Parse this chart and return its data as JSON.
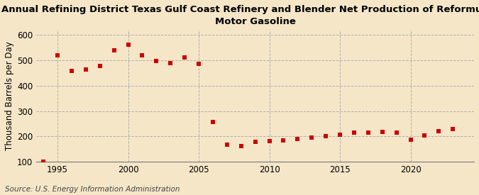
{
  "title": "Annual Refining District Texas Gulf Coast Refinery and Blender Net Production of Reformulated\nMotor Gasoline",
  "ylabel": "Thousand Barrels per Day",
  "source": "Source: U.S. Energy Information Administration",
  "background_color": "#f5e6c8",
  "years": [
    1994,
    1995,
    1996,
    1997,
    1998,
    1999,
    2000,
    2001,
    2002,
    2003,
    2004,
    2005,
    2006,
    2007,
    2008,
    2009,
    2010,
    2011,
    2012,
    2013,
    2014,
    2015,
    2016,
    2017,
    2018,
    2019,
    2020,
    2021,
    2022,
    2023
  ],
  "values": [
    100,
    520,
    458,
    463,
    477,
    540,
    562,
    520,
    497,
    490,
    512,
    487,
    257,
    168,
    163,
    178,
    183,
    185,
    190,
    197,
    200,
    208,
    215,
    215,
    218,
    215,
    188,
    205,
    222,
    230
  ],
  "marker_color": "#cc0000",
  "marker_size": 5,
  "ylim": [
    100,
    620
  ],
  "yticks": [
    100,
    200,
    300,
    400,
    500,
    600
  ],
  "xlim": [
    1993.5,
    2024.5
  ],
  "xticks": [
    1995,
    2000,
    2005,
    2010,
    2015,
    2020
  ],
  "grid_color": "#b0b0b0",
  "grid_linestyle": "--",
  "title_fontsize": 9.5,
  "label_fontsize": 8.5,
  "tick_fontsize": 8.5,
  "source_fontsize": 7.5
}
